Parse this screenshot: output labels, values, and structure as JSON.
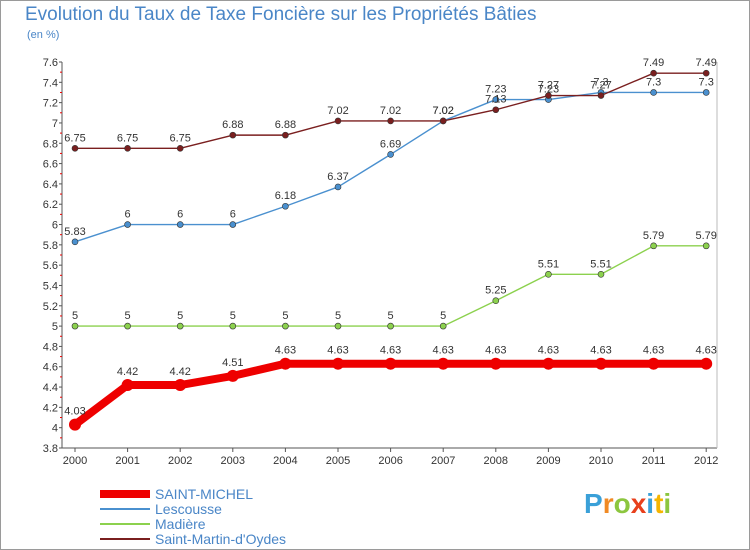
{
  "header": {
    "title": "Evolution du Taux de Taxe Foncière sur les Propriétés Bâties",
    "subtitle": "(en %)"
  },
  "logo": {
    "text": "Proxiti",
    "letters": [
      "P",
      "r",
      "o",
      "x",
      "i",
      "t",
      "i"
    ],
    "colors": [
      "#3aa0d8",
      "#f08a24",
      "#8cc63f",
      "#e8401c",
      "#3aa0d8",
      "#f6b500",
      "#8cc63f"
    ]
  },
  "chart_data": {
    "type": "line",
    "title": "Evolution du Taux de Taxe Foncière sur les Propriétés Bâties",
    "ylabel": "(en %)",
    "xlabel": "",
    "ylim": [
      3.8,
      7.6
    ],
    "yticks": [
      "3.8",
      "4",
      "4.2",
      "4.4",
      "4.6",
      "4.8",
      "5",
      "5.2",
      "5.4",
      "5.6",
      "5.8",
      "6",
      "6.2",
      "6.4",
      "6.6",
      "6.8",
      "7",
      "7.2",
      "7.4",
      "7.6"
    ],
    "x": [
      "2000",
      "2001",
      "2002",
      "2003",
      "2004",
      "2005",
      "2006",
      "2007",
      "2008",
      "2009",
      "2010",
      "2011",
      "2012"
    ],
    "grid": false,
    "legend_position": "bottom-left",
    "series": [
      {
        "name": "SAINT-MICHEL",
        "color": "#ee0000",
        "values": [
          4.03,
          4.42,
          4.42,
          4.51,
          4.63,
          4.63,
          4.63,
          4.63,
          4.63,
          4.63,
          4.63,
          4.63,
          4.63
        ],
        "labels": [
          "4.03",
          "4.42",
          "4.42",
          "4.51",
          "4.63",
          "4.63",
          "4.63",
          "4.63",
          "4.63",
          "4.63",
          "4.63",
          "4.63",
          "4.63"
        ]
      },
      {
        "name": "Lescousse",
        "color": "#4a90cf",
        "values": [
          5.83,
          6,
          6,
          6,
          6.18,
          6.37,
          6.69,
          7.02,
          7.23,
          7.23,
          7.3,
          7.3,
          7.3
        ],
        "labels": [
          "5.83",
          "6",
          "6",
          "6",
          "6.18",
          "6.37",
          "6.69",
          "7.02",
          "7.23",
          "7.23",
          "7.3",
          "7.3",
          "7.3"
        ]
      },
      {
        "name": "Madière",
        "color": "#8cd14e",
        "values": [
          5,
          5,
          5,
          5,
          5,
          5,
          5,
          5,
          5.25,
          5.51,
          5.51,
          5.79,
          5.79
        ],
        "labels": [
          "5",
          "5",
          "5",
          "5",
          "5",
          "5",
          "5",
          "5",
          "5.25",
          "5.51",
          "5.51",
          "5.79",
          "5.79"
        ]
      },
      {
        "name": "Saint-Martin-d'Oydes",
        "color": "#7a1f1f",
        "values": [
          6.75,
          6.75,
          6.75,
          6.88,
          6.88,
          7.02,
          7.02,
          7.02,
          7.13,
          7.27,
          7.27,
          7.49,
          7.49
        ],
        "labels": [
          "6.75",
          "6.75",
          "6.75",
          "6.88",
          "6.88",
          "7.02",
          "7.02",
          "7.02",
          "7.13",
          "7.27",
          "7.27",
          "7.49",
          "7.49"
        ]
      }
    ]
  }
}
